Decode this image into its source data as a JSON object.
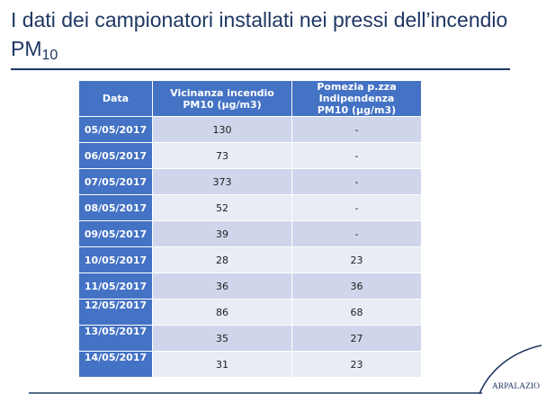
{
  "slide": {
    "title_line1": "I dati dei campionatori installati nei pressi dell’incendio",
    "title_pm": "PM",
    "title_pm_sub": "10"
  },
  "table": {
    "header": {
      "date": "Data",
      "vicinanza": [
        "Vicinanza incendio",
        "PM10 (µg/m3)"
      ],
      "pomezia": [
        "Pomezia p.zza",
        "Indipendenza",
        "PM10 (µg/m3)"
      ]
    },
    "rows": [
      {
        "date": "05/05/2017",
        "vicinanza": 130,
        "pomezia": "-"
      },
      {
        "date": "06/05/2017",
        "vicinanza": 73,
        "pomezia": "-"
      },
      {
        "date": "07/05/2017",
        "vicinanza": 373,
        "pomezia": "-"
      },
      {
        "date": "08/05/2017",
        "vicinanza": 52,
        "pomezia": "-"
      },
      {
        "date": "09/05/2017",
        "vicinanza": 39,
        "pomezia": "-"
      },
      {
        "date": "10/05/2017",
        "vicinanza": 28,
        "pomezia": 23
      },
      {
        "date": "11/05/2017",
        "vicinanza": 36,
        "pomezia": 36
      },
      {
        "date": "12/05/2017",
        "vicinanza": 86,
        "pomezia": 68
      },
      {
        "date": "13/05/2017",
        "vicinanza": 35,
        "pomezia": 27
      },
      {
        "date": "14/05/2017",
        "vicinanza": 31,
        "pomezia": 23
      }
    ]
  },
  "logo": {
    "text": "ARPALAZIO",
    "icon": "arpalazio-swoosh-icon"
  },
  "colors": {
    "title": "#1f3864",
    "header": "#4472c4",
    "band_dark": "#cfd5ea",
    "band_light": "#e9ebf5"
  }
}
